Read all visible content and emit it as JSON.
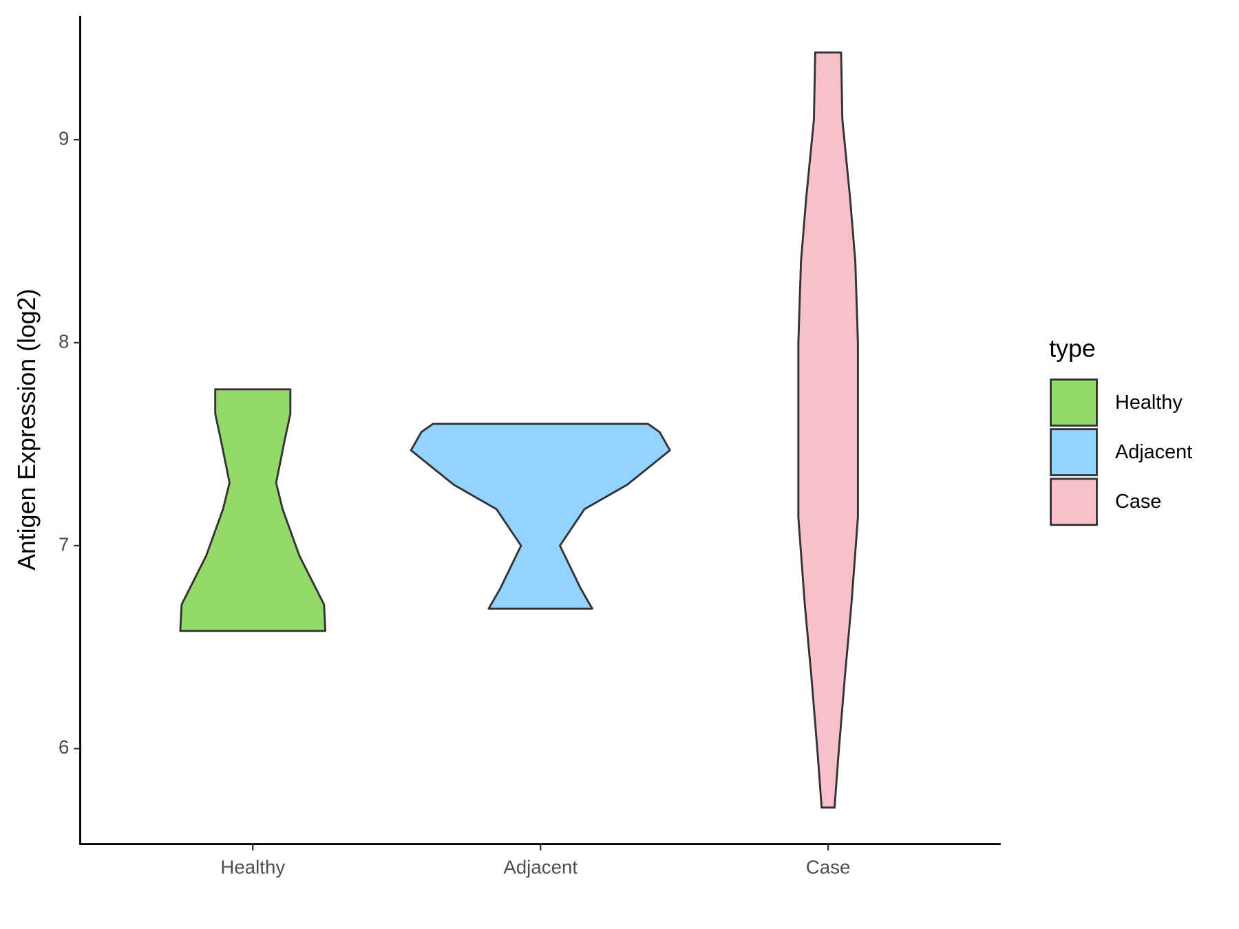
{
  "chart_data": {
    "type": "violin",
    "y_label": "Antigen Expression (log2)",
    "legend_title": "type",
    "categories": [
      "Healthy",
      "Adjacent",
      "Case"
    ],
    "series": [
      {
        "name": "Healthy",
        "color": "#93db69",
        "y": [
          6.58,
          6.71,
          6.95,
          7.18,
          7.31,
          7.5,
          7.65,
          7.77
        ],
        "density": [
          0.56,
          0.55,
          0.36,
          0.23,
          0.18,
          0.24,
          0.29,
          0.29
        ]
      },
      {
        "name": "Adjacent",
        "color": "#93d3ff",
        "y": [
          6.69,
          6.79,
          7.0,
          7.18,
          7.3,
          7.47,
          7.56,
          7.6
        ],
        "density": [
          0.4,
          0.31,
          0.15,
          0.34,
          0.67,
          1.0,
          0.92,
          0.83
        ]
      },
      {
        "name": "Case",
        "color": "#f7c0cb",
        "y": [
          5.71,
          5.97,
          6.36,
          6.71,
          7.14,
          7.53,
          8.0,
          8.4,
          8.71,
          9.1,
          9.43
        ],
        "density": [
          0.05,
          0.08,
          0.13,
          0.18,
          0.23,
          0.23,
          0.23,
          0.21,
          0.17,
          0.11,
          0.1
        ]
      }
    ],
    "ylim": [
      5.53,
      9.61
    ],
    "yticks": [
      6,
      7,
      8,
      9
    ],
    "grid": false,
    "legend_position": "right"
  }
}
